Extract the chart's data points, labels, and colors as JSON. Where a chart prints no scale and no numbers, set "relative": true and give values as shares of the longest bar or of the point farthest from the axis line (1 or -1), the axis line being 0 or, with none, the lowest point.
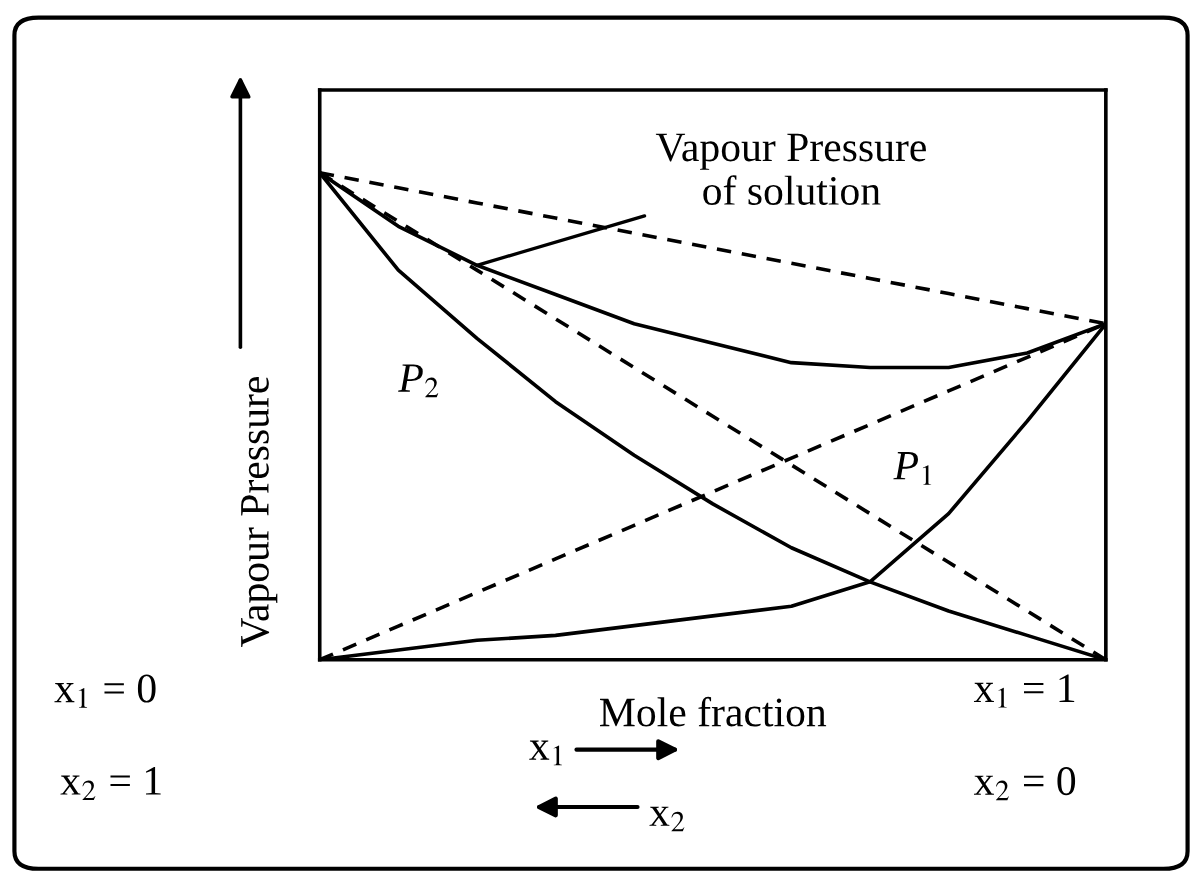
{
  "chart_data": {
    "type": "line",
    "relative": true,
    "xlabel": "Mole fraction",
    "ylabel": "Vapour Pressure",
    "categories": [
      null,
      null,
      null,
      null,
      null,
      null,
      null,
      null,
      null,
      null,
      null
    ],
    "series": [
      {
        "color": "#000000",
        "line_style": "solid",
        "values": [
          1,
          0.89,
          0.81,
          0.75,
          0.69,
          0.65,
          0.61,
          0.6,
          0.6,
          0.63,
          0.69
        ]
      },
      {
        "color": "#000000",
        "line_style": "solid",
        "values": [
          1,
          0.8,
          0.66,
          0.53,
          0.42,
          0.32,
          0.23,
          0.16,
          0.1,
          0.05,
          0
        ]
      },
      {
        "color": "#000000",
        "line_style": "solid",
        "values": [
          0,
          0.02,
          0.04,
          0.05,
          0.07,
          0.09,
          0.11,
          0.16,
          0.3,
          0.49,
          0.69
        ]
      },
      {
        "color": "#000000",
        "line_style": "dashed",
        "values": [
          1,
          0.969,
          0.938,
          0.907,
          0.876,
          0.845,
          0.814,
          0.783,
          0.752,
          0.721,
          0.69
        ]
      },
      {
        "color": "#000000",
        "line_style": "dashed",
        "values": [
          1,
          0.9,
          0.8,
          0.7,
          0.6,
          0.5,
          0.4,
          0.3,
          0.2,
          0.1,
          0
        ]
      },
      {
        "color": "#000000",
        "line_style": "dashed",
        "values": [
          0,
          0.069,
          0.138,
          0.207,
          0.276,
          0.345,
          0.414,
          0.483,
          0.552,
          0.621,
          0.69
        ]
      }
    ],
    "annotations": [
      "Vapour Pressure\nof solution",
      "P$_{2}$",
      "P$_{1}$",
      "x$_{1}$ = 0",
      "x$_{2}$ = 1",
      "x$_{1}$ = 1",
      "x$_{2}$ = 0",
      "x$_{1}$",
      "x$_{2}$"
    ],
    "grid": false,
    "legend": false,
    "marker": "none"
  }
}
